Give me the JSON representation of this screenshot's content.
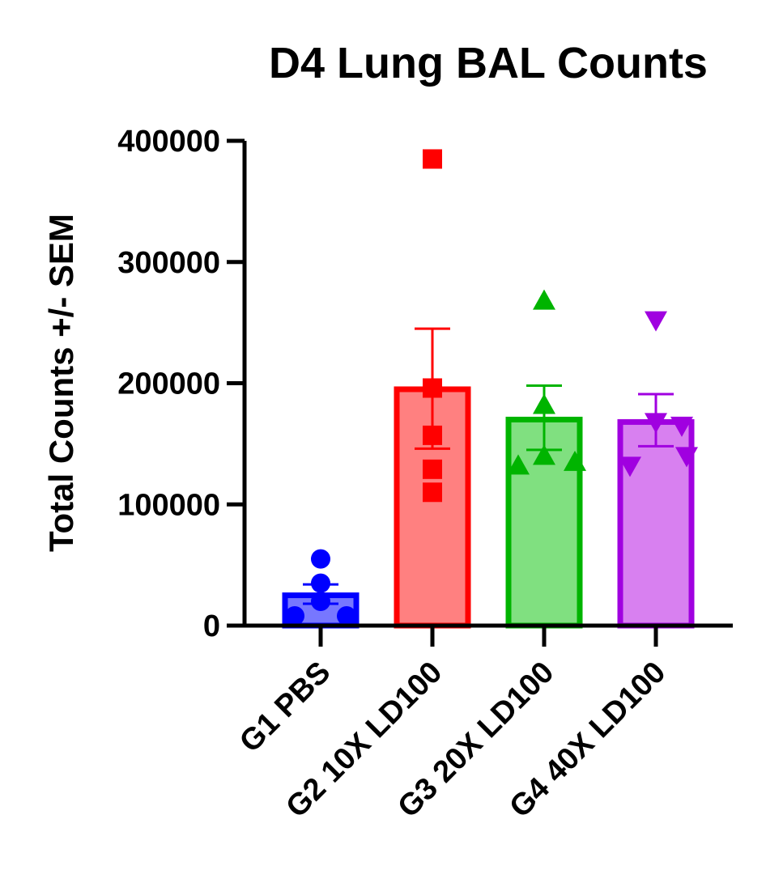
{
  "chart_data": {
    "type": "bar",
    "title": "D4 Lung BAL Counts",
    "xlabel": "",
    "ylabel": "Total Counts +/- SEM",
    "ylim": [
      0,
      400000
    ],
    "yticks": [
      0,
      100000,
      200000,
      300000,
      400000
    ],
    "yticks_labels": [
      "0",
      "100000",
      "200000",
      "300000",
      "400000"
    ],
    "grid": false,
    "legend": "none",
    "categories": [
      "G1 PBS",
      "G2 10X LD100",
      "G3 20X LD100",
      "G4 40X LD100"
    ],
    "series": [
      {
        "category": "G1 PBS",
        "mean": 25000,
        "sem_low": 18000,
        "sem_high": 34000,
        "color": "#0000ff",
        "fill": "#7777ff",
        "marker": "circle",
        "points": [
          55000,
          35000,
          20000,
          8000,
          8000
        ]
      },
      {
        "category": "G2 10X LD100",
        "mean": 195000,
        "sem_low": 146000,
        "sem_high": 245000,
        "color": "#ff0000",
        "fill": "#ff8080",
        "marker": "square",
        "points": [
          385000,
          196000,
          157000,
          129000,
          110000
        ]
      },
      {
        "category": "G3 20X LD100",
        "mean": 170000,
        "sem_low": 145000,
        "sem_high": 198000,
        "color": "#00b400",
        "fill": "#80e080",
        "marker": "triangle-up",
        "points": [
          268000,
          182000,
          140000,
          135000,
          132000
        ]
      },
      {
        "category": "G4 40X LD100",
        "mean": 168000,
        "sem_low": 148000,
        "sem_high": 191000,
        "color": "#a000e0",
        "fill": "#d880f0",
        "marker": "triangle-down",
        "points": [
          252000,
          168000,
          165000,
          140000,
          132000
        ]
      }
    ]
  }
}
